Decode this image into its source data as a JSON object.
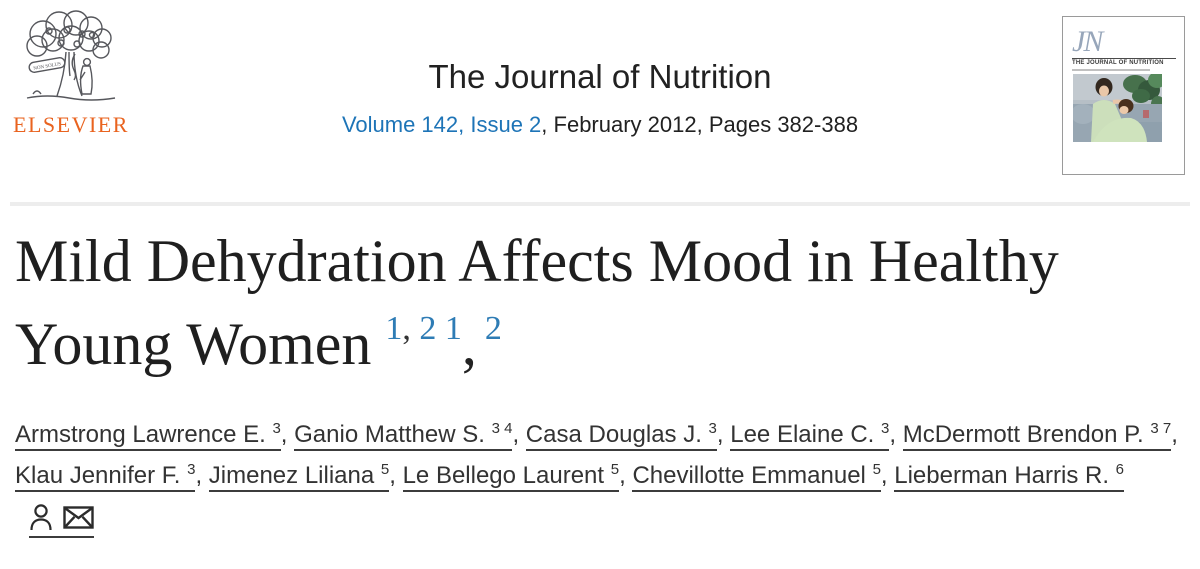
{
  "colors": {
    "elsevier_orange": "#e9631f",
    "link_blue": "#1d74b7",
    "superscript_blue": "#2e7cb5",
    "text_dark": "#212121",
    "author_text": "#333333",
    "divider_gray": "#ededed",
    "cover_jn_gray_blue": "#97a6ba"
  },
  "header": {
    "publisher_wordmark": "ELSEVIER",
    "logo_banner_text": "NON SOLUS",
    "journal_title": "The Journal of Nutrition",
    "issue_link_text": "Volume 142, Issue 2",
    "issue_rest_text": ", February 2012, Pages 382-388",
    "cover": {
      "monogram": "JN",
      "name": "THE JOURNAL OF NUTRITION"
    }
  },
  "article": {
    "title_line1": "Mild Dehydration Affects Mood in Healthy",
    "title_line2": "Young Women",
    "title_full": "Mild Dehydration Affects Mood in Healthy Young Women",
    "title_sups": [
      {
        "text": "1",
        "color": "blue",
        "sup": true
      },
      {
        "text": ", ",
        "color": "dark",
        "sup": true
      },
      {
        "text": "2",
        "color": "blue",
        "sup": true
      },
      {
        "text": " ",
        "color": "dark",
        "sup": true
      },
      {
        "text": "1",
        "color": "blue",
        "sup": true
      },
      {
        "text": ",",
        "color": "dark",
        "sup": false
      },
      {
        "text": "2",
        "color": "blue",
        "sup": true
      }
    ],
    "authors": [
      {
        "surname": "Armstrong",
        "given": "Lawrence E.",
        "sups": [
          "3"
        ]
      },
      {
        "surname": "Ganio",
        "given": "Matthew S.",
        "sups": [
          "3",
          "4"
        ]
      },
      {
        "surname": "Casa",
        "given": "Douglas J.",
        "sups": [
          "3"
        ]
      },
      {
        "surname": "Lee",
        "given": "Elaine C.",
        "sups": [
          "3"
        ]
      },
      {
        "surname": "McDermott",
        "given": "Brendon P.",
        "sups": [
          "3",
          "7"
        ]
      },
      {
        "surname": "Klau",
        "given": "Jennifer F.",
        "sups": [
          "3"
        ]
      },
      {
        "surname": "Jimenez",
        "given": "Liliana",
        "sups": [
          "5"
        ]
      },
      {
        "surname": "Le Bellego",
        "given": "Laurent",
        "sups": [
          "5"
        ]
      },
      {
        "surname": "Chevillotte",
        "given": "Emmanuel",
        "sups": [
          "5"
        ]
      },
      {
        "surname": "Lieberman",
        "given": "Harris R.",
        "sups": [
          "6"
        ]
      }
    ],
    "author_separator": ", ",
    "icons": {
      "author_profile": "person-icon",
      "correspondence": "envelope-icon"
    }
  }
}
